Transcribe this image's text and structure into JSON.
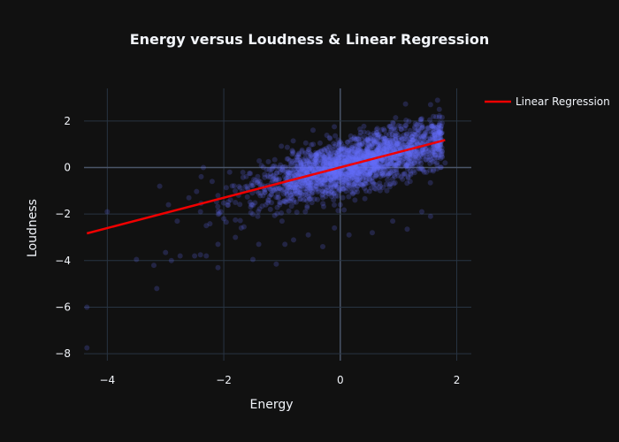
{
  "chart_data": {
    "type": "scatter",
    "title": "Energy versus Loudness & Linear Regression",
    "xlabel": "Energy",
    "ylabel": "Loudness",
    "xlim": [
      -4.4,
      2.25
    ],
    "ylim": [
      -8.3,
      3.4
    ],
    "x_ticks": [
      -4,
      -2,
      0,
      2
    ],
    "y_ticks": [
      -8,
      -6,
      -4,
      -2,
      0,
      2
    ],
    "x_tick_labels": [
      "−4",
      "−2",
      "0",
      "2"
    ],
    "y_tick_labels": [
      "−8",
      "−6",
      "−4",
      "−2",
      "0",
      "2"
    ],
    "grid": true,
    "legend_position": "top-right",
    "series": [
      {
        "kind": "scatter",
        "color": "#636efa",
        "points": [
          [
            -4.35,
            -6.0
          ],
          [
            -4.35,
            -7.75
          ],
          [
            -4.0,
            -1.9
          ],
          [
            -3.5,
            -3.95
          ],
          [
            -3.2,
            -4.2
          ],
          [
            -3.15,
            -5.2
          ],
          [
            -3.0,
            -3.65
          ],
          [
            -2.9,
            -4.0
          ],
          [
            -2.75,
            -3.8
          ],
          [
            -2.5,
            -3.8
          ],
          [
            -2.4,
            -3.75
          ],
          [
            -2.3,
            -3.8
          ],
          [
            -2.1,
            -4.3
          ],
          [
            -2.1,
            -3.3
          ],
          [
            -2.05,
            -1.9
          ],
          [
            -1.8,
            -3.0
          ],
          [
            -1.5,
            -3.95
          ],
          [
            -1.4,
            -3.3
          ],
          [
            -1.1,
            -4.15
          ],
          [
            -0.95,
            -3.3
          ],
          [
            -0.55,
            -2.9
          ],
          [
            -0.3,
            -3.4
          ],
          [
            0.15,
            -2.9
          ],
          [
            0.55,
            -2.8
          ],
          [
            1.15,
            -2.65
          ],
          [
            1.55,
            -2.1
          ],
          [
            -3.1,
            -0.8
          ],
          [
            -2.95,
            -1.6
          ],
          [
            -2.8,
            -2.3
          ],
          [
            -2.6,
            -1.3
          ],
          [
            -2.4,
            -1.9
          ],
          [
            -2.3,
            -2.5
          ],
          [
            -2.2,
            -0.6
          ],
          [
            -2.1,
            -1.2
          ],
          [
            -2.0,
            -2.2
          ],
          [
            -1.9,
            -0.2
          ],
          [
            -1.8,
            -1.5
          ],
          [
            -1.7,
            -2.6
          ],
          [
            -1.6,
            -0.8
          ],
          [
            -1.5,
            -2.0
          ],
          [
            -1.4,
            -1.1
          ],
          [
            -1.3,
            -0.3
          ],
          [
            -1.2,
            -1.8
          ],
          [
            -1.1,
            -0.9
          ],
          [
            -1.0,
            -2.3
          ],
          [
            -0.9,
            -0.4
          ],
          [
            -0.8,
            -1.4
          ],
          [
            -0.7,
            0.3
          ],
          [
            -0.6,
            -1.9
          ],
          [
            -0.5,
            -0.7
          ],
          [
            -0.4,
            0.6
          ],
          [
            -0.3,
            -1.3
          ],
          [
            -0.2,
            -0.2
          ],
          [
            -0.1,
            0.9
          ],
          [
            0.0,
            -1.6
          ],
          [
            0.1,
            0.2
          ],
          [
            0.2,
            1.2
          ],
          [
            0.3,
            -0.8
          ],
          [
            0.4,
            0.5
          ],
          [
            0.5,
            -0.3
          ],
          [
            0.6,
            1.4
          ],
          [
            0.7,
            0.0
          ],
          [
            0.8,
            -1.0
          ],
          [
            0.9,
            0.8
          ],
          [
            1.0,
            1.8
          ],
          [
            1.1,
            0.4
          ],
          [
            1.2,
            -0.6
          ],
          [
            1.3,
            1.1
          ],
          [
            1.4,
            2.1
          ],
          [
            1.5,
            0.7
          ],
          [
            1.6,
            1.5
          ],
          [
            1.7,
            2.5
          ],
          [
            1.8,
            0.2
          ],
          [
            -2.35,
            0.0
          ],
          [
            1.55,
            2.7
          ],
          [
            1.4,
            -1.9
          ],
          [
            0.9,
            -2.3
          ],
          [
            -0.1,
            -2.6
          ]
        ]
      },
      {
        "kind": "line",
        "name": "Linear Regression",
        "color": "#ef0000",
        "points": [
          [
            -4.35,
            -2.83
          ],
          [
            1.8,
            1.18
          ]
        ]
      }
    ],
    "density": {
      "seed": 7,
      "count": 2400,
      "x_mean": 0.25,
      "x_sd": 0.85,
      "y_intercept": -0.0,
      "y_slope": 0.65,
      "y_noise": 0.55
    }
  }
}
